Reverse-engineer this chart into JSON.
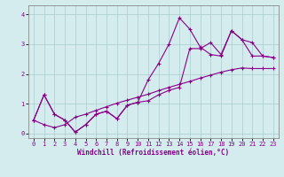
{
  "xlabel": "Windchill (Refroidissement éolien,°C)",
  "bg_color": "#d4ecee",
  "grid_color": "#aacccc",
  "line_color": "#880088",
  "xlim": [
    -0.5,
    23.5
  ],
  "ylim": [
    -0.15,
    4.3
  ],
  "xticks": [
    0,
    1,
    2,
    3,
    4,
    5,
    6,
    7,
    8,
    9,
    10,
    11,
    12,
    13,
    14,
    15,
    16,
    17,
    18,
    19,
    20,
    21,
    22,
    23
  ],
  "yticks": [
    0,
    1,
    2,
    3,
    4
  ],
  "series1_x": [
    0,
    1,
    2,
    3,
    4,
    5,
    6,
    7,
    8,
    9,
    10,
    11,
    12,
    13,
    14,
    15,
    16,
    17,
    18,
    19,
    20,
    21,
    22,
    23
  ],
  "series1_y": [
    0.45,
    1.3,
    0.65,
    0.45,
    0.05,
    0.3,
    0.65,
    0.75,
    0.5,
    0.95,
    1.05,
    1.8,
    2.35,
    3.0,
    3.88,
    3.5,
    2.9,
    2.65,
    2.6,
    3.45,
    3.15,
    2.6,
    2.6,
    2.55
  ],
  "series2_x": [
    0,
    1,
    2,
    3,
    4,
    5,
    6,
    7,
    8,
    9,
    10,
    11,
    12,
    13,
    14,
    15,
    16,
    17,
    18,
    19,
    20,
    21,
    22,
    23
  ],
  "series2_y": [
    0.45,
    1.3,
    0.65,
    0.45,
    0.05,
    0.3,
    0.65,
    0.75,
    0.5,
    0.95,
    1.05,
    1.1,
    1.3,
    1.45,
    1.55,
    2.85,
    2.85,
    3.05,
    2.65,
    3.45,
    3.15,
    3.05,
    2.6,
    2.55
  ],
  "series3_x": [
    0,
    1,
    2,
    3,
    4,
    5,
    6,
    7,
    8,
    9,
    10,
    11,
    12,
    13,
    14,
    15,
    16,
    17,
    18,
    19,
    20,
    21,
    22,
    23
  ],
  "series3_y": [
    0.45,
    0.3,
    0.2,
    0.3,
    0.55,
    0.65,
    0.78,
    0.9,
    1.02,
    1.12,
    1.22,
    1.32,
    1.44,
    1.55,
    1.65,
    1.75,
    1.86,
    1.96,
    2.06,
    2.14,
    2.2,
    2.18,
    2.18,
    2.18
  ],
  "marker": "+"
}
